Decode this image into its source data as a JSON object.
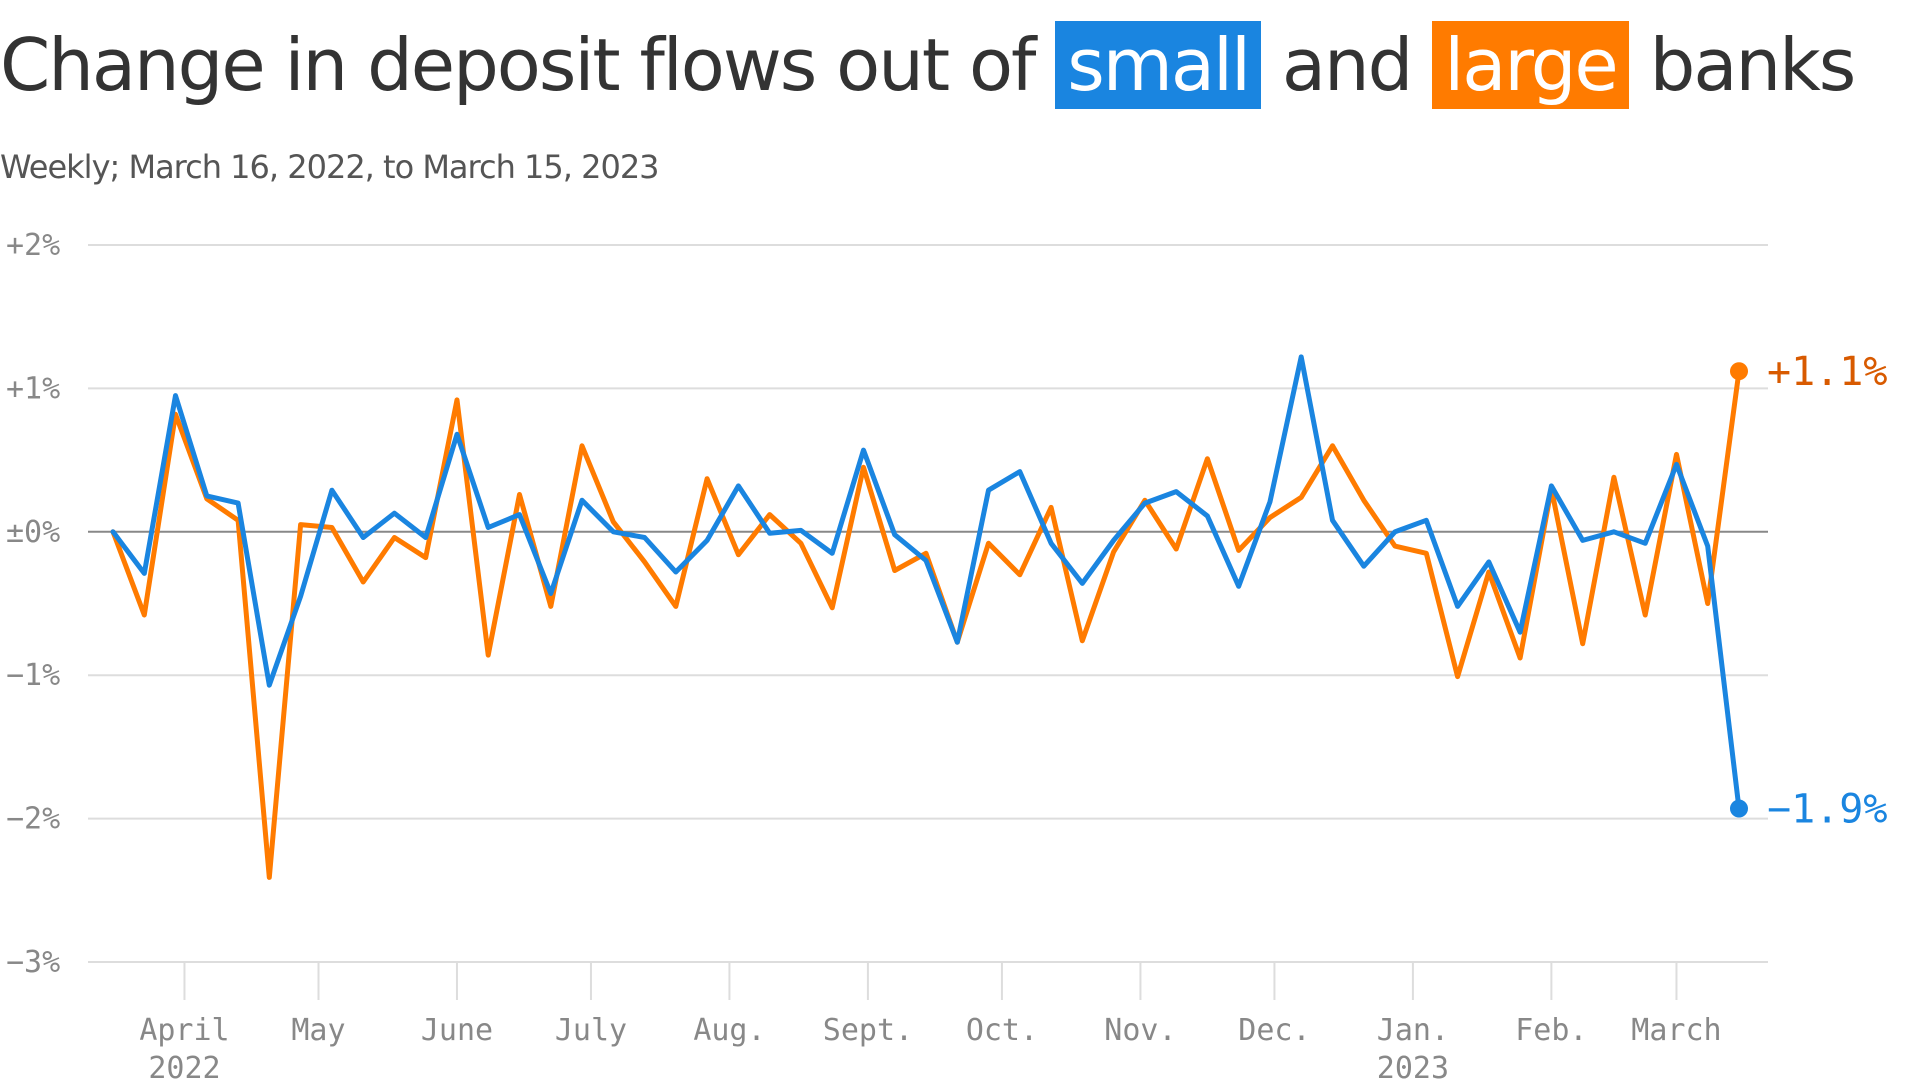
{
  "header": {
    "title_before": "Change in deposit flows out of",
    "title_small": "small",
    "title_and": "and",
    "title_large": "large",
    "title_after": "banks",
    "subtitle": "Weekly; March 16, 2022, to March 15, 2023"
  },
  "colors": {
    "small": "#1a85e0",
    "large": "#ff7b00",
    "large_label": "#d85a00",
    "zero_line": "#888888",
    "grid": "#dddddd"
  },
  "chart_data": {
    "type": "line",
    "title": "Change in deposit flows out of small and large banks",
    "subtitle": "Weekly; March 16, 2022, to March 15, 2023",
    "xlabel": "",
    "ylabel": "",
    "ylim": [
      -3,
      2
    ],
    "yticks": [
      {
        "value": 2,
        "label": "+2%"
      },
      {
        "value": 1,
        "label": "+1%"
      },
      {
        "value": 0,
        "label": "±0%"
      },
      {
        "value": -1,
        "label": "−1%"
      },
      {
        "value": -2,
        "label": "−2%"
      },
      {
        "value": -3,
        "label": "−3%"
      }
    ],
    "x_start": "2022-03-16",
    "x_end": "2023-03-15",
    "xticks": [
      {
        "date": "2022-04-01",
        "label": "April",
        "sub": "2022"
      },
      {
        "date": "2022-05-01",
        "label": "May",
        "sub": ""
      },
      {
        "date": "2022-06-01",
        "label": "June",
        "sub": ""
      },
      {
        "date": "2022-07-01",
        "label": "July",
        "sub": ""
      },
      {
        "date": "2022-08-01",
        "label": "Aug.",
        "sub": ""
      },
      {
        "date": "2022-09-01",
        "label": "Sept.",
        "sub": ""
      },
      {
        "date": "2022-10-01",
        "label": "Oct.",
        "sub": ""
      },
      {
        "date": "2022-11-01",
        "label": "Nov.",
        "sub": ""
      },
      {
        "date": "2022-12-01",
        "label": "Dec.",
        "sub": ""
      },
      {
        "date": "2023-01-01",
        "label": "Jan.",
        "sub": "2023"
      },
      {
        "date": "2023-02-01",
        "label": "Feb.",
        "sub": ""
      },
      {
        "date": "2023-03-01",
        "label": "March",
        "sub": ""
      }
    ],
    "grid": true,
    "legend": "title",
    "series": [
      {
        "name": "small",
        "end_label": "−1.9%",
        "values": [
          0.0,
          -0.29,
          0.95,
          0.25,
          0.2,
          -1.07,
          -0.45,
          0.29,
          -0.04,
          0.13,
          -0.04,
          0.68,
          0.03,
          0.12,
          -0.43,
          0.22,
          0.0,
          -0.04,
          -0.28,
          -0.06,
          0.32,
          -0.01,
          0.01,
          -0.15,
          0.57,
          -0.02,
          -0.2,
          -0.77,
          0.29,
          0.42,
          -0.08,
          -0.36,
          -0.06,
          0.2,
          0.28,
          0.11,
          -0.38,
          0.21,
          1.22,
          0.08,
          -0.24,
          0.0,
          0.08,
          -0.52,
          -0.21,
          -0.7,
          0.32,
          -0.06,
          0.0,
          -0.08,
          0.47,
          -0.1,
          -1.93
        ]
      },
      {
        "name": "large",
        "end_label": "+1.1%",
        "values": [
          0.0,
          -0.58,
          0.82,
          0.23,
          0.08,
          -2.41,
          0.05,
          0.03,
          -0.35,
          -0.04,
          -0.18,
          0.92,
          -0.86,
          0.26,
          -0.52,
          0.6,
          0.07,
          -0.21,
          -0.52,
          0.37,
          -0.16,
          0.12,
          -0.08,
          -0.53,
          0.45,
          -0.27,
          -0.15,
          -0.77,
          -0.08,
          -0.3,
          0.17,
          -0.76,
          -0.14,
          0.22,
          -0.12,
          0.51,
          -0.13,
          0.1,
          0.24,
          0.6,
          0.22,
          -0.1,
          -0.15,
          -1.01,
          -0.28,
          -0.88,
          0.3,
          -0.78,
          0.38,
          -0.58,
          0.54,
          -0.5,
          1.12
        ]
      }
    ]
  }
}
